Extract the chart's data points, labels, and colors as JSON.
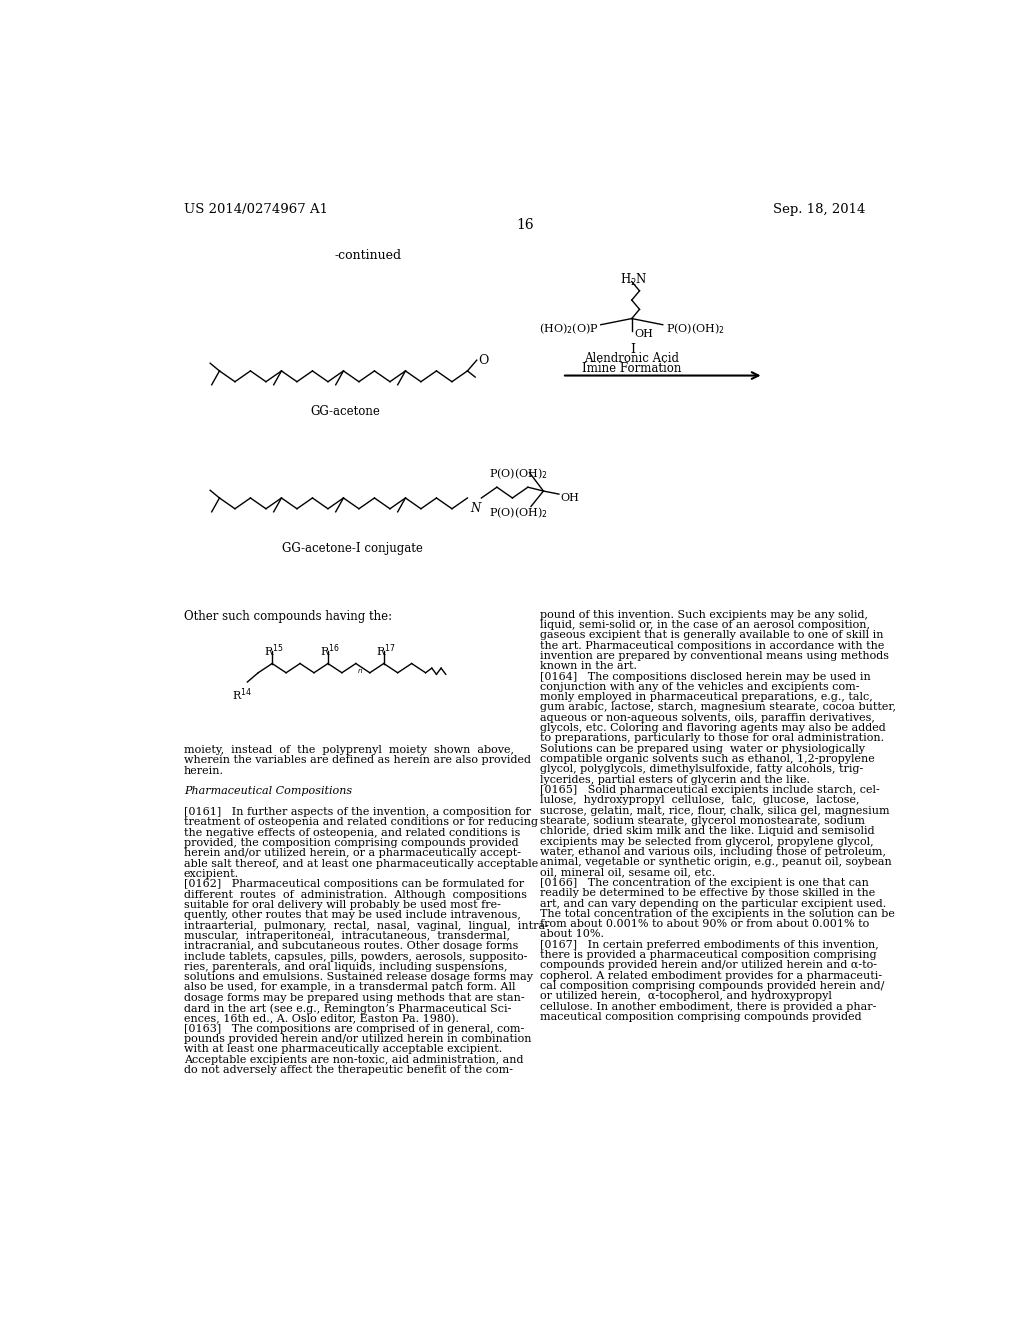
{
  "page_number": "16",
  "patent_number": "US 2014/0274967 A1",
  "patent_date": "Sep. 18, 2014",
  "continued_label": "-continued",
  "background_color": "#ffffff",
  "text_color": "#000000",
  "gg_acetone_label": "GG-acetone",
  "gg_conjugate_label": "GG-acetone-I conjugate",
  "other_compounds_text": "Other such compounds having the:",
  "moiety_texts": [
    "moiety,  instead  of  the  polyprenyl  moiety  shown  above,",
    "wherein the variables are defined as herein are also provided",
    "herein.",
    "",
    "Pharmaceutical Compositions",
    "",
    "[0161]   In further aspects of the invention, a composition for",
    "treatment of osteopenia and related conditions or for reducing",
    "the negative effects of osteopenia, and related conditions is",
    "provided, the composition comprising compounds provided",
    "herein and/or utilized herein, or a pharmaceutically accept-",
    "able salt thereof, and at least one pharmaceutically acceptable",
    "excipient.",
    "[0162]   Pharmaceutical compositions can be formulated for",
    "different  routes  of  administration.  Although  compositions",
    "suitable for oral delivery will probably be used most fre-",
    "quently, other routes that may be used include intravenous,",
    "intraarterial,  pulmonary,  rectal,  nasal,  vaginal,  lingual,  intra-",
    "muscular,  intraperitoneal,  intracutaneous,  transdermal,",
    "intracranial, and subcutaneous routes. Other dosage forms",
    "include tablets, capsules, pills, powders, aerosols, supposito-",
    "ries, parenterals, and oral liquids, including suspensions,",
    "solutions and emulsions. Sustained release dosage forms may",
    "also be used, for example, in a transdermal patch form. All",
    "dosage forms may be prepared using methods that are stan-",
    "dard in the art (see e.g., Remington’s Pharmaceutical Sci-",
    "ences, 16th ed., A. Oslo editor, Easton Pa. 1980).",
    "[0163]   The compositions are comprised of in general, com-",
    "pounds provided herein and/or utilized herein in combination",
    "with at least one pharmaceutically acceptable excipient.",
    "Acceptable excipients are non-toxic, aid administration, and",
    "do not adversely affect the therapeutic benefit of the com-"
  ],
  "right_texts": [
    "pound of this invention. Such excipients may be any solid,",
    "liquid, semi-solid or, in the case of an aerosol composition,",
    "gaseous excipient that is generally available to one of skill in",
    "the art. Pharmaceutical compositions in accordance with the",
    "invention are prepared by conventional means using methods",
    "known in the art.",
    "[0164]   The compositions disclosed herein may be used in",
    "conjunction with any of the vehicles and excipients com-",
    "monly employed in pharmaceutical preparations, e.g., talc,",
    "gum arabic, lactose, starch, magnesium stearate, cocoa butter,",
    "aqueous or non-aqueous solvents, oils, paraffin derivatives,",
    "glycols, etc. Coloring and flavoring agents may also be added",
    "to preparations, particularly to those for oral administration.",
    "Solutions can be prepared using  water or physiologically",
    "compatible organic solvents such as ethanol, 1,2-propylene",
    "glycol, polyglycols, dimethylsulfoxide, fatty alcohols, trig-",
    "lycerides, partial esters of glycerin and the like.",
    "[0165]   Solid pharmaceutical excipients include starch, cel-",
    "lulose,  hydroxypropyl  cellulose,  talc,  glucose,  lactose,",
    "sucrose, gelatin, malt, rice, flour, chalk, silica gel, magnesium",
    "stearate, sodium stearate, glycerol monostearate, sodium",
    "chloride, dried skim milk and the like. Liquid and semisolid",
    "excipients may be selected from glycerol, propylene glycol,",
    "water, ethanol and various oils, including those of petroleum,",
    "animal, vegetable or synthetic origin, e.g., peanut oil, soybean",
    "oil, mineral oil, sesame oil, etc.",
    "[0166]   The concentration of the excipient is one that can",
    "readily be determined to be effective by those skilled in the",
    "art, and can vary depending on the particular excipient used.",
    "The total concentration of the excipients in the solution can be",
    "from about 0.001% to about 90% or from about 0.001% to",
    "about 10%.",
    "[0167]   In certain preferred embodiments of this invention,",
    "there is provided a pharmaceutical composition comprising",
    "compounds provided herein and/or utilized herein and α-to-",
    "copherol. A related embodiment provides for a pharmaceuti-",
    "cal composition comprising compounds provided herein and/",
    "or utilized herein,  α-tocopherol, and hydroxypropyl",
    "cellulose. In another embodiment, there is provided a phar-",
    "maceutical composition comprising compounds provided"
  ]
}
